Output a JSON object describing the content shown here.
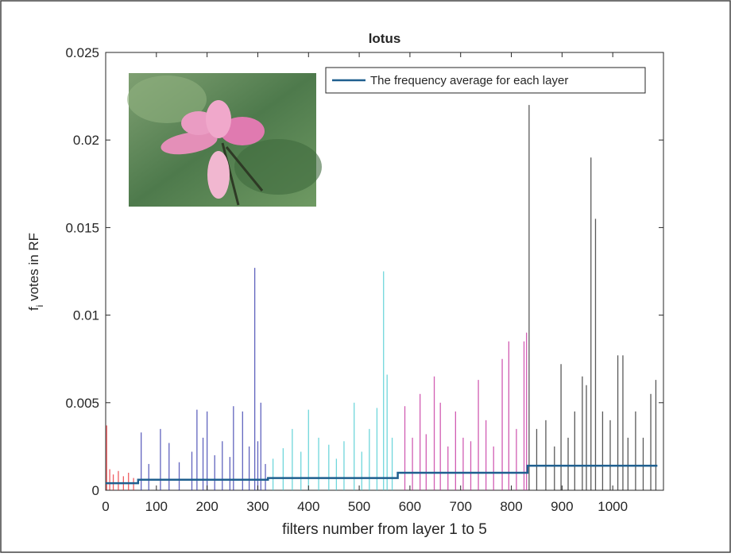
{
  "chart_data": {
    "type": "stem",
    "title": "lotus",
    "x_label": "filters number from layer 1 to 5",
    "y_label": {
      "main": "f",
      "sub": "i",
      "rest": " votes in RF"
    },
    "xlim": [
      0,
      1100
    ],
    "ylim": [
      0,
      0.025
    ],
    "xticks": [
      0,
      100,
      200,
      300,
      400,
      500,
      600,
      700,
      800,
      900,
      1000
    ],
    "yticks": [
      0,
      0.005,
      0.01,
      0.015,
      0.02,
      0.025
    ],
    "legend_position": "upper right",
    "series": [
      {
        "color": "#e8262b",
        "x": [
          2,
          8,
          15,
          25,
          35,
          45,
          55
        ],
        "values": [
          0.0037,
          0.0012,
          0.0009,
          0.0011,
          0.0008,
          0.001,
          0.0007
        ]
      },
      {
        "color": "#2b2fa8",
        "x": [
          70,
          85,
          108,
          125,
          145,
          170,
          180,
          192,
          200,
          215,
          230,
          245,
          252,
          270,
          283,
          294,
          300,
          306,
          315
        ],
        "values": [
          0.0033,
          0.0015,
          0.0035,
          0.0027,
          0.0016,
          0.0022,
          0.0046,
          0.003,
          0.0045,
          0.002,
          0.0028,
          0.0019,
          0.0048,
          0.0045,
          0.0025,
          0.0127,
          0.0028,
          0.005,
          0.0015
        ]
      },
      {
        "color": "#3fc8cf",
        "x": [
          330,
          350,
          368,
          385,
          400,
          420,
          440,
          455,
          470,
          490,
          505,
          520,
          535,
          548,
          555,
          565
        ],
        "values": [
          0.0018,
          0.0024,
          0.0035,
          0.0022,
          0.0046,
          0.003,
          0.0026,
          0.0018,
          0.0028,
          0.005,
          0.0022,
          0.0035,
          0.0047,
          0.0125,
          0.0066,
          0.003
        ]
      },
      {
        "color": "#c2279a",
        "x": [
          590,
          605,
          620,
          632,
          648,
          660,
          675,
          690,
          705,
          720,
          735,
          750,
          765,
          782,
          795,
          810,
          825,
          830
        ],
        "values": [
          0.0048,
          0.003,
          0.0055,
          0.0032,
          0.0065,
          0.005,
          0.0025,
          0.0045,
          0.003,
          0.0028,
          0.0063,
          0.004,
          0.0025,
          0.0075,
          0.0085,
          0.0035,
          0.0085,
          0.009
        ]
      },
      {
        "color": "#222222",
        "x": [
          835,
          850,
          868,
          885,
          898,
          912,
          925,
          940,
          948,
          957,
          966,
          980,
          995,
          1010,
          1020,
          1030,
          1045,
          1060,
          1075,
          1085
        ],
        "values": [
          0.022,
          0.0035,
          0.004,
          0.0025,
          0.0072,
          0.003,
          0.0045,
          0.0065,
          0.006,
          0.019,
          0.0155,
          0.0045,
          0.004,
          0.0077,
          0.0077,
          0.003,
          0.0045,
          0.003,
          0.0055,
          0.0063
        ]
      }
    ],
    "average": {
      "name": "The frequency average for each layer",
      "color": "#1f5f8f",
      "x": [
        0,
        64,
        64,
        320,
        320,
        576,
        576,
        832,
        832,
        1088
      ],
      "values": [
        0.0004,
        0.0004,
        0.0006,
        0.0006,
        0.0007,
        0.0007,
        0.001,
        0.001,
        0.0014,
        0.0014
      ]
    }
  }
}
